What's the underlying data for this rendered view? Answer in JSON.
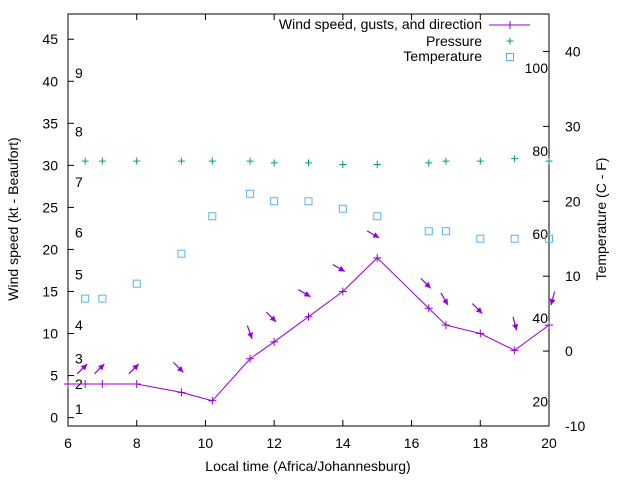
{
  "chart_data": {
    "type": "line",
    "xlabel": "Local time (Africa/Johannesburg)",
    "ylabel": "Wind speed (kt - Beaufort)",
    "y2label": "Temperature (C - F)",
    "xlim": [
      6,
      20
    ],
    "ylim": [
      -1,
      48
    ],
    "y2lim": [
      -10,
      45
    ],
    "x_ticks": [
      6,
      8,
      10,
      12,
      14,
      16,
      18,
      20
    ],
    "y_ticks": [
      0,
      5,
      10,
      15,
      20,
      25,
      30,
      35,
      40,
      45
    ],
    "y2_ticks": [
      -10,
      0,
      10,
      20,
      30,
      40
    ],
    "beaufort_labels": [
      {
        "label": "1",
        "y": 1
      },
      {
        "label": "2",
        "y": 4
      },
      {
        "label": "3",
        "y": 7
      },
      {
        "label": "4",
        "y": 11
      },
      {
        "label": "5",
        "y": 17
      },
      {
        "label": "6",
        "y": 22
      },
      {
        "label": "7",
        "y": 28
      },
      {
        "label": "8",
        "y": 34
      },
      {
        "label": "9",
        "y": 41
      }
    ],
    "fahrenheit_labels": [
      {
        "label": "20",
        "c": -6.7
      },
      {
        "label": "40",
        "c": 4.4
      },
      {
        "label": "60",
        "c": 15.6
      },
      {
        "label": "80",
        "c": 26.7
      },
      {
        "label": "100",
        "c": 37.8
      }
    ],
    "legend": {
      "wind": "Wind speed, gusts, and direction",
      "pressure": "Pressure",
      "temperature": "Temperature"
    },
    "colors": {
      "wind": "#9400d3",
      "pressure": "#009e73",
      "temperature": "#56b4e9"
    },
    "series": [
      {
        "name": "Wind speed, gusts, and direction",
        "x": [
          6,
          6.5,
          7,
          8,
          9.3,
          10.2,
          11.3,
          12,
          13,
          14,
          15,
          16.5,
          17,
          18,
          19,
          20
        ],
        "values": [
          4,
          4,
          4,
          4,
          3,
          2,
          7,
          9,
          12,
          15,
          19,
          13,
          11,
          10,
          8,
          11
        ]
      },
      {
        "name": "Wind direction (arrow, deg from north)",
        "x": [
          6.5,
          7,
          8,
          9.3,
          11.3,
          12,
          13,
          14,
          15,
          16.5,
          17,
          18,
          19,
          20
        ],
        "y": [
          4,
          4,
          4,
          3,
          7,
          9,
          12,
          15,
          19,
          13,
          11,
          10,
          8,
          11
        ],
        "direction": [
          225,
          225,
          225,
          315,
          340,
          315,
          300,
          300,
          300,
          315,
          330,
          315,
          345,
          15
        ]
      },
      {
        "name": "Pressure",
        "x": [
          6.5,
          7,
          8,
          9.3,
          10.2,
          11.3,
          12,
          13,
          14,
          15,
          16.5,
          17,
          18,
          19,
          20
        ],
        "values": [
          30.5,
          30.5,
          30.5,
          30.5,
          30.5,
          30.5,
          30.3,
          30.3,
          30.1,
          30.1,
          30.3,
          30.5,
          30.5,
          30.8,
          30.5
        ]
      },
      {
        "name": "Temperature",
        "x": [
          6.5,
          7,
          8,
          9.3,
          10.2,
          11.3,
          12,
          13,
          14,
          15,
          16.5,
          17,
          18,
          19,
          20
        ],
        "values": [
          7,
          7,
          9,
          13,
          18,
          21,
          20,
          20,
          19,
          18,
          16,
          16,
          15,
          15,
          15
        ]
      }
    ]
  }
}
